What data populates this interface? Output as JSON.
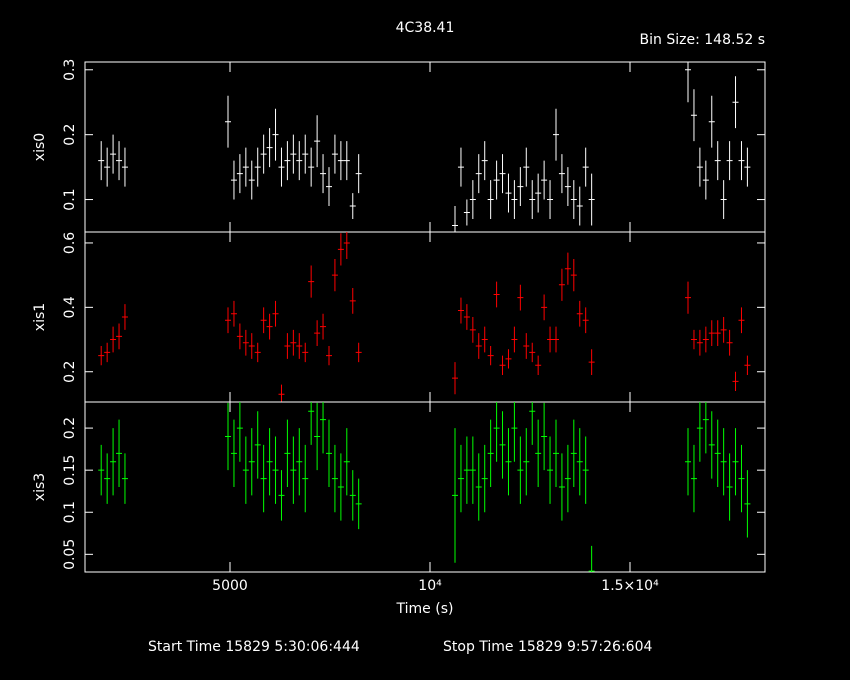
{
  "chart_data": {
    "type": "errorbar",
    "title": "4C38.41",
    "bin_label": "Bin Size: 148.52 s",
    "xlabel": "Time (s)",
    "start_label": "Start Time 15829  5:30:06:444",
    "stop_label": "Stop Time 15829  9:57:26:604",
    "xlim": [
      1375,
      18375
    ],
    "xticks": [
      5000,
      {
        "value": 10000,
        "label": "10⁴"
      },
      {
        "value": 15000,
        "label": "1.5×10⁴"
      }
    ],
    "x": [
      1780,
      1929,
      2077,
      2226,
      2374,
      4950,
      5099,
      5247,
      5396,
      5544,
      5693,
      5841,
      5990,
      6138,
      6287,
      6435,
      6584,
      6732,
      6881,
      7029,
      7178,
      7326,
      7475,
      7623,
      7772,
      7920,
      8069,
      8217,
      10625,
      10774,
      10922,
      11071,
      11219,
      11368,
      11516,
      11665,
      11813,
      11962,
      12110,
      12259,
      12407,
      12556,
      12704,
      12853,
      13001,
      13150,
      13298,
      13447,
      13595,
      13744,
      13892,
      14041,
      16450,
      16599,
      16747,
      16896,
      17044,
      17193,
      17341,
      17490,
      17638,
      17787,
      17935
    ],
    "series": [
      {
        "name": "xis0",
        "color": "#ffffff",
        "ylim": [
          0.05,
          0.312
        ],
        "yticks": [
          0.1,
          0.2,
          0.3
        ],
        "values": [
          0.16,
          0.15,
          0.17,
          0.16,
          0.15,
          0.22,
          0.13,
          0.14,
          0.15,
          0.13,
          0.15,
          0.17,
          0.18,
          0.2,
          0.15,
          0.16,
          0.17,
          0.16,
          0.17,
          0.15,
          0.19,
          0.14,
          0.12,
          0.17,
          0.16,
          0.16,
          0.09,
          0.14,
          0.06,
          0.15,
          0.08,
          0.1,
          0.14,
          0.16,
          0.1,
          0.13,
          0.14,
          0.11,
          0.1,
          0.12,
          0.15,
          0.1,
          0.11,
          0.13,
          0.1,
          0.2,
          0.14,
          0.12,
          0.1,
          0.09,
          0.15,
          0.1,
          0.3,
          0.23,
          0.15,
          0.13,
          0.22,
          0.16,
          0.1,
          0.16,
          0.25,
          0.16,
          0.15
        ],
        "errors": [
          0.03,
          0.03,
          0.03,
          0.03,
          0.03,
          0.04,
          0.03,
          0.03,
          0.03,
          0.03,
          0.03,
          0.03,
          0.03,
          0.04,
          0.03,
          0.03,
          0.03,
          0.03,
          0.03,
          0.03,
          0.04,
          0.03,
          0.03,
          0.03,
          0.03,
          0.03,
          0.02,
          0.03,
          0.03,
          0.03,
          0.02,
          0.03,
          0.03,
          0.03,
          0.03,
          0.03,
          0.03,
          0.03,
          0.03,
          0.03,
          0.03,
          0.03,
          0.03,
          0.03,
          0.03,
          0.04,
          0.03,
          0.03,
          0.03,
          0.03,
          0.03,
          0.04,
          0.05,
          0.04,
          0.03,
          0.03,
          0.04,
          0.03,
          0.03,
          0.03,
          0.04,
          0.03,
          0.03
        ]
      },
      {
        "name": "xis1",
        "color": "#ff0000",
        "ylim": [
          0.106,
          0.634
        ],
        "yticks": [
          0.2,
          0.4,
          0.6
        ],
        "values": [
          0.25,
          0.26,
          0.3,
          0.31,
          0.37,
          0.36,
          0.38,
          0.31,
          0.29,
          0.28,
          0.26,
          0.36,
          0.34,
          0.38,
          0.13,
          0.28,
          0.29,
          0.28,
          0.26,
          0.48,
          0.32,
          0.34,
          0.25,
          0.5,
          0.58,
          0.6,
          0.42,
          0.26,
          0.18,
          0.39,
          0.37,
          0.33,
          0.28,
          0.3,
          0.25,
          0.44,
          0.22,
          0.24,
          0.3,
          0.43,
          0.28,
          0.26,
          0.22,
          0.4,
          0.3,
          0.3,
          0.47,
          0.52,
          0.5,
          0.38,
          0.36,
          0.23,
          0.43,
          0.3,
          0.29,
          0.3,
          0.32,
          0.32,
          0.33,
          0.29,
          0.17,
          0.36,
          0.22
        ],
        "errors": [
          0.03,
          0.03,
          0.04,
          0.04,
          0.04,
          0.04,
          0.04,
          0.04,
          0.04,
          0.04,
          0.03,
          0.04,
          0.04,
          0.04,
          0.03,
          0.04,
          0.04,
          0.04,
          0.03,
          0.05,
          0.04,
          0.04,
          0.03,
          0.05,
          0.05,
          0.05,
          0.04,
          0.03,
          0.05,
          0.04,
          0.04,
          0.04,
          0.04,
          0.04,
          0.03,
          0.04,
          0.03,
          0.03,
          0.04,
          0.04,
          0.04,
          0.03,
          0.03,
          0.04,
          0.04,
          0.04,
          0.05,
          0.05,
          0.05,
          0.04,
          0.04,
          0.04,
          0.05,
          0.03,
          0.04,
          0.04,
          0.04,
          0.04,
          0.04,
          0.04,
          0.03,
          0.04,
          0.03
        ]
      },
      {
        "name": "xis3",
        "color": "#00ff00",
        "ylim": [
          0.029,
          0.231
        ],
        "yticks": [
          0.05,
          0.1,
          0.15,
          0.2
        ],
        "values": [
          0.15,
          0.14,
          0.16,
          0.17,
          0.14,
          0.19,
          0.17,
          0.2,
          0.15,
          0.16,
          0.18,
          0.14,
          0.16,
          0.15,
          0.12,
          0.17,
          0.15,
          0.16,
          0.14,
          0.22,
          0.19,
          0.21,
          0.17,
          0.14,
          0.13,
          0.16,
          0.12,
          0.11,
          0.12,
          0.14,
          0.15,
          0.15,
          0.13,
          0.14,
          0.17,
          0.2,
          0.18,
          0.16,
          0.2,
          0.15,
          0.16,
          0.22,
          0.17,
          0.19,
          0.15,
          0.17,
          0.13,
          0.14,
          0.17,
          0.16,
          0.15,
          0.03,
          0.16,
          0.14,
          0.2,
          0.21,
          0.18,
          0.17,
          0.16,
          0.13,
          0.16,
          0.14,
          0.11
        ],
        "errors": [
          0.03,
          0.03,
          0.04,
          0.04,
          0.03,
          0.04,
          0.04,
          0.04,
          0.04,
          0.04,
          0.04,
          0.04,
          0.04,
          0.04,
          0.03,
          0.04,
          0.04,
          0.04,
          0.04,
          0.04,
          0.04,
          0.04,
          0.04,
          0.04,
          0.04,
          0.04,
          0.03,
          0.03,
          0.08,
          0.04,
          0.04,
          0.04,
          0.04,
          0.04,
          0.04,
          0.04,
          0.04,
          0.04,
          0.04,
          0.04,
          0.04,
          0.04,
          0.04,
          0.04,
          0.04,
          0.04,
          0.04,
          0.04,
          0.04,
          0.04,
          0.04,
          0.03,
          0.04,
          0.04,
          0.04,
          0.04,
          0.04,
          0.04,
          0.04,
          0.04,
          0.04,
          0.04,
          0.04
        ]
      }
    ]
  }
}
